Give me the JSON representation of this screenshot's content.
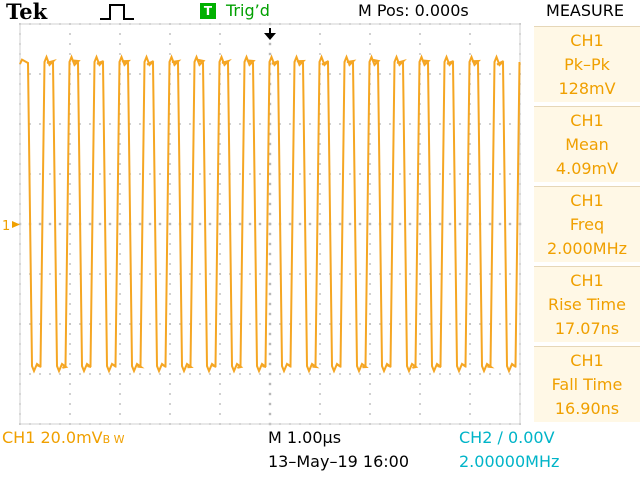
{
  "header": {
    "brand": "Tek",
    "acquire_icon": "pulse-icon",
    "trigger_badge": "T",
    "trigger_status": "Trig’d",
    "horizontal_position": "M Pos: 0.000s"
  },
  "waveform": {
    "channel": "CH1",
    "marker": "1",
    "color": "#f5a623",
    "frequency_mhz": 2.0,
    "timebase_us_per_div": 1.0,
    "divisions_x": 10,
    "divisions_y": 8
  },
  "measure": {
    "title": "MEASURE",
    "items": [
      {
        "source": "CH1",
        "label": "Pk–Pk",
        "value": "128mV"
      },
      {
        "source": "CH1",
        "label": "Mean",
        "value": "4.09mV"
      },
      {
        "source": "CH1",
        "label": "Freq",
        "value": "2.000MHz"
      },
      {
        "source": "CH1",
        "label": "Rise Time",
        "value": "17.07ns"
      },
      {
        "source": "CH1",
        "label": "Fall Time",
        "value": "16.90ns"
      }
    ]
  },
  "footer": {
    "ch1_scale": "CH1  20.0mV",
    "ch1_bw": "B W",
    "timebase": "M 1.00µs",
    "datetime": "13–May–19 16:00",
    "trigger": "CH2 ∕ 0.00V",
    "trigger_freq": "2.00000MHz"
  },
  "colors": {
    "trace": "#f5a623",
    "menu_text": "#f0a000",
    "menu_bg": "#fff8e6",
    "trigger_text": "#00b4c8",
    "trig_status": "#00a000",
    "screen_bg": "#ffffff"
  }
}
